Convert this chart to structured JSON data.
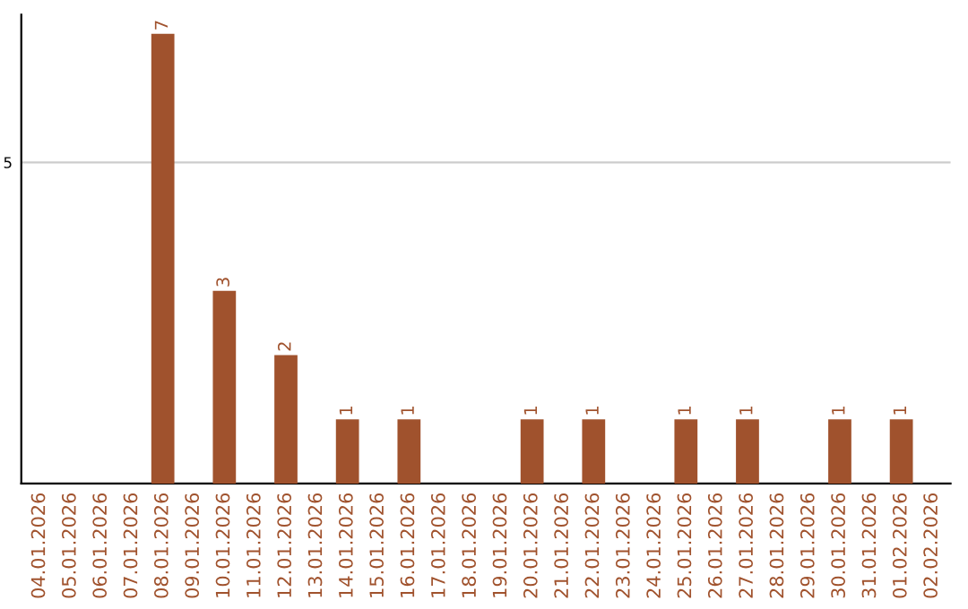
{
  "chart_data": {
    "type": "bar",
    "categories": [
      "04.01.2026",
      "05.01.2026",
      "06.01.2026",
      "07.01.2026",
      "08.01.2026",
      "09.01.2026",
      "10.01.2026",
      "11.01.2026",
      "12.01.2026",
      "13.01.2026",
      "14.01.2026",
      "15.01.2026",
      "16.01.2026",
      "17.01.2026",
      "18.01.2026",
      "19.01.2026",
      "20.01.2026",
      "21.01.2026",
      "22.01.2026",
      "23.01.2026",
      "24.01.2026",
      "25.01.2026",
      "26.01.2026",
      "27.01.2026",
      "28.01.2026",
      "29.01.2026",
      "30.01.2026",
      "31.01.2026",
      "01.02.2026",
      "02.02.2026"
    ],
    "values": [
      0,
      0,
      0,
      0,
      7,
      0,
      3,
      0,
      2,
      0,
      1,
      0,
      1,
      0,
      0,
      0,
      1,
      0,
      1,
      0,
      0,
      1,
      0,
      1,
      0,
      0,
      1,
      0,
      1,
      0
    ],
    "value_labels": [
      null,
      null,
      null,
      null,
      "7",
      null,
      "3",
      null,
      "2",
      null,
      "1",
      null,
      "1",
      null,
      null,
      null,
      "1",
      null,
      "1",
      null,
      null,
      "1",
      null,
      "1",
      null,
      null,
      "1",
      null,
      "1",
      null
    ],
    "color": "#a0522d",
    "ylim": [
      0,
      7.3
    ],
    "yticks": [
      5
    ],
    "grid": "y"
  }
}
